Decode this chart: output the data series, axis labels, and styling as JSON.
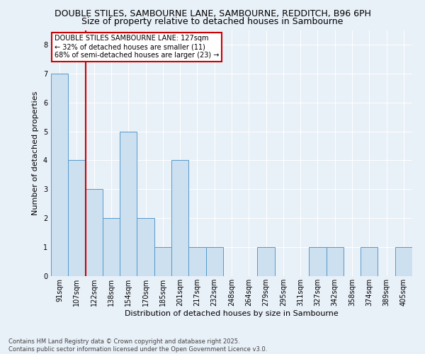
{
  "title1": "DOUBLE STILES, SAMBOURNE LANE, SAMBOURNE, REDDITCH, B96 6PH",
  "title2": "Size of property relative to detached houses in Sambourne",
  "xlabel": "Distribution of detached houses by size in Sambourne",
  "ylabel": "Number of detached properties",
  "categories": [
    "91sqm",
    "107sqm",
    "122sqm",
    "138sqm",
    "154sqm",
    "170sqm",
    "185sqm",
    "201sqm",
    "217sqm",
    "232sqm",
    "248sqm",
    "264sqm",
    "279sqm",
    "295sqm",
    "311sqm",
    "327sqm",
    "342sqm",
    "358sqm",
    "374sqm",
    "389sqm",
    "405sqm"
  ],
  "values": [
    7,
    4,
    3,
    2,
    5,
    2,
    1,
    4,
    1,
    1,
    0,
    0,
    1,
    0,
    0,
    1,
    1,
    0,
    1,
    0,
    1
  ],
  "bar_color": "#cce0f0",
  "bar_edgecolor": "#5599cc",
  "vline_x_index": 1.5,
  "vline_color": "#cc0000",
  "annotation_text": "DOUBLE STILES SAMBOURNE LANE: 127sqm\n← 32% of detached houses are smaller (11)\n68% of semi-detached houses are larger (23) →",
  "annotation_box_color": "#ffffff",
  "annotation_box_edgecolor": "#cc0000",
  "ylim": [
    0,
    8.5
  ],
  "yticks": [
    0,
    1,
    2,
    3,
    4,
    5,
    6,
    7,
    8
  ],
  "footnote": "Contains HM Land Registry data © Crown copyright and database right 2025.\nContains public sector information licensed under the Open Government Licence v3.0.",
  "bg_color": "#e8f0f8",
  "plot_bg_color": "#e8f0f8",
  "grid_color": "#ffffff",
  "title_fontsize": 9,
  "subtitle_fontsize": 9,
  "footnote_fontsize": 6,
  "xlabel_fontsize": 8,
  "ylabel_fontsize": 8,
  "tick_fontsize": 7,
  "annot_fontsize": 7
}
